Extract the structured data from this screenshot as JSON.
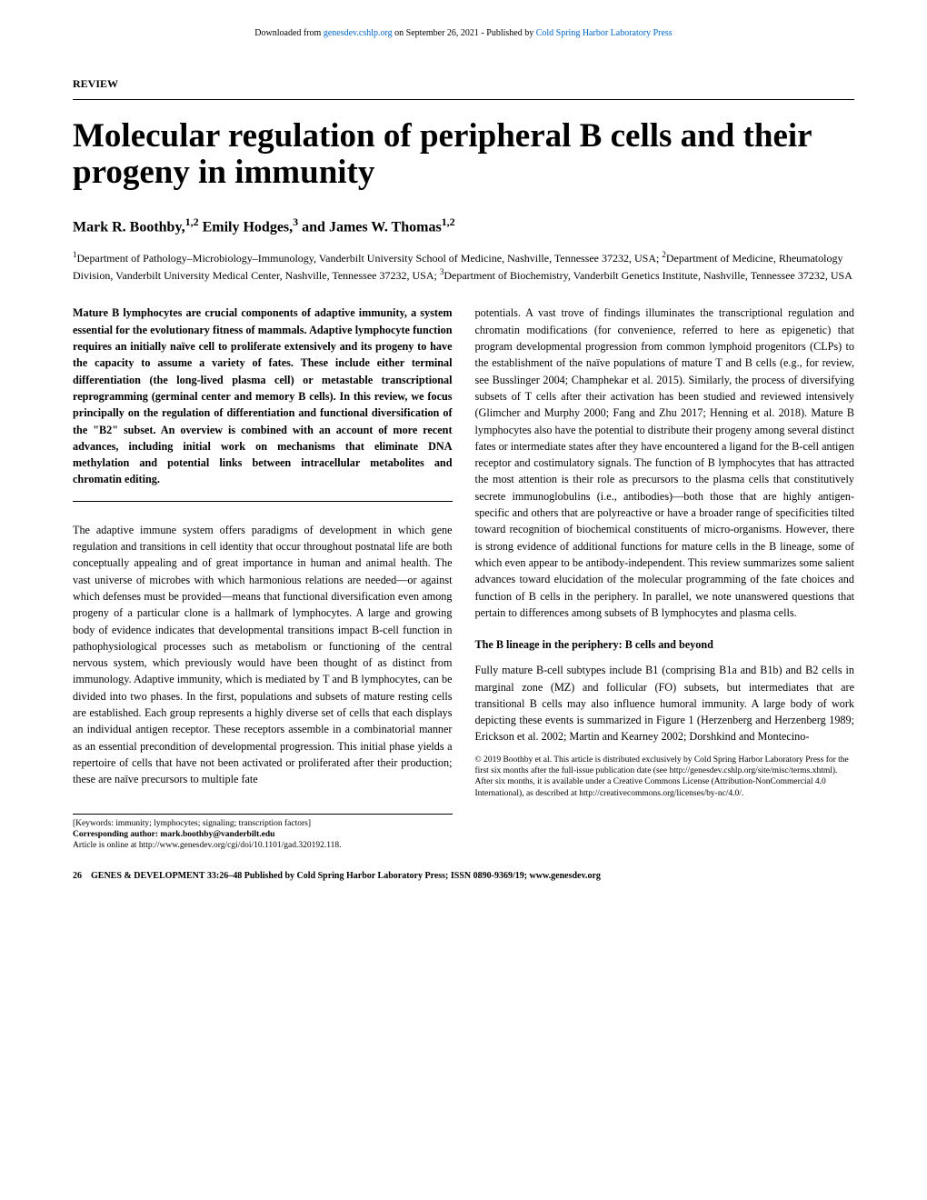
{
  "header": {
    "prefix": "Downloaded from ",
    "link1": "genesdev.cshlp.org",
    "middle": " on September 26, 2021 - Published by ",
    "link2": "Cold Spring Harbor Laboratory Press"
  },
  "review_label": "REVIEW",
  "title": "Molecular regulation of peripheral B cells and their progeny in immunity",
  "authors": "Mark R. Boothby,¹,² Emily Hodges,³ and James W. Thomas¹,²",
  "affiliations": "¹Department of Pathology–Microbiology–Immunology, Vanderbilt University School of Medicine, Nashville, Tennessee 37232, USA; ²Department of Medicine, Rheumatology Division, Vanderbilt University Medical Center, Nashville, Tennessee 37232, USA; ³Department of Biochemistry, Vanderbilt Genetics Institute, Nashville, Tennessee 37232, USA",
  "abstract": "Mature B lymphocytes are crucial components of adaptive immunity, a system essential for the evolutionary fitness of mammals. Adaptive lymphocyte function requires an initially naïve cell to proliferate extensively and its progeny to have the capacity to assume a variety of fates. These include either terminal differentiation (the long-lived plasma cell) or metastable transcriptional reprogramming (germinal center and memory B cells). In this review, we focus principally on the regulation of differentiation and functional diversification of the \"B2\" subset. An overview is combined with an account of more recent advances, including initial work on mechanisms that eliminate DNA methylation and potential links between intracellular metabolites and chromatin editing.",
  "intro_text": "The adaptive immune system offers paradigms of development in which gene regulation and transitions in cell identity that occur throughout postnatal life are both conceptually appealing and of great importance in human and animal health. The vast universe of microbes with which harmonious relations are needed—or against which defenses must be provided—means that functional diversification even among progeny of a particular clone is a hallmark of lymphocytes. A large and growing body of evidence indicates that developmental transitions impact B-cell function in pathophysiological processes such as metabolism or functioning of the central nervous system, which previously would have been thought of as distinct from immunology. Adaptive immunity, which is mediated by T and B lymphocytes, can be divided into two phases. In the first, populations and subsets of mature resting cells are established. Each group represents a highly diverse set of cells that each displays an individual antigen receptor. These receptors assemble in a combinatorial manner as an essential precondition of developmental progression. This initial phase yields a repertoire of cells that have not been activated or proliferated after their production; these are naïve precursors to multiple fate",
  "col2_text": "potentials. A vast trove of findings illuminates the transcriptional regulation and chromatin modifications (for convenience, referred to here as epigenetic) that program developmental progression from common lymphoid progenitors (CLPs) to the establishment of the naïve populations of mature T and B cells (e.g., for review, see Busslinger 2004; Champhekar et al. 2015). Similarly, the process of diversifying subsets of T cells after their activation has been studied and reviewed intensively (Glimcher and Murphy 2000; Fang and Zhu 2017; Henning et al. 2018). Mature B lymphocytes also have the potential to distribute their progeny among several distinct fates or intermediate states after they have encountered a ligand for the B-cell antigen receptor and costimulatory signals. The function of B lymphocytes that has attracted the most attention is their role as precursors to the plasma cells that constitutively secrete immunoglobulins (i.e., antibodies)—both those that are highly antigen-specific and others that are polyreactive or have a broader range of specificities tilted toward recognition of biochemical constituents of micro-organisms. However, there is strong evidence of additional functions for mature cells in the B lineage, some of which even appear to be antibody-independent. This review summarizes some salient advances toward elucidation of the molecular programming of the fate choices and function of B cells in the periphery. In parallel, we note unanswered questions that pertain to differences among subsets of B lymphocytes and plasma cells.",
  "section_heading": "The B lineage in the periphery: B cells and beyond",
  "section_text": "Fully mature B-cell subtypes include B1 (comprising B1a and B1b) and B2 cells in marginal zone (MZ) and follicular (FO) subsets, but intermediates that are transitional B cells may also influence humoral immunity. A large body of work depicting these events is summarized in Figure 1 (Herzenberg and Herzenberg 1989; Erickson et al. 2002; Martin and Kearney 2002; Dorshkind and Montecino-",
  "footnotes_left": {
    "keywords": "[Keywords: immunity; lymphocytes; signaling; transcription factors]",
    "corresponding": "Corresponding author: mark.boothby@vanderbilt.edu",
    "article_online": "Article is online at http://www.genesdev.org/cgi/doi/10.1101/gad.320192.118."
  },
  "footnotes_right": "© 2019 Boothby et al.   This article is distributed exclusively by Cold Spring Harbor Laboratory Press for the first six months after the full-issue publication date (see http://genesdev.cshlp.org/site/misc/terms.xhtml). After six months, it is available under a Creative Commons License (Attribution-NonCommercial 4.0 International), as described at http://creativecommons.org/licenses/by-nc/4.0/.",
  "footer": {
    "page": "26",
    "journal": "GENES & DEVELOPMENT 33:26–48 Published by Cold Spring Harbor Laboratory Press; ISSN 0890-9369/19; www.genesdev.org"
  },
  "colors": {
    "link": "#0066cc",
    "text": "#000000",
    "background": "#ffffff"
  },
  "typography": {
    "body_fontsize": 12.2,
    "title_fontsize": 37,
    "authors_fontsize": 16,
    "footnote_fontsize": 9.5,
    "header_fontsize": 10
  }
}
